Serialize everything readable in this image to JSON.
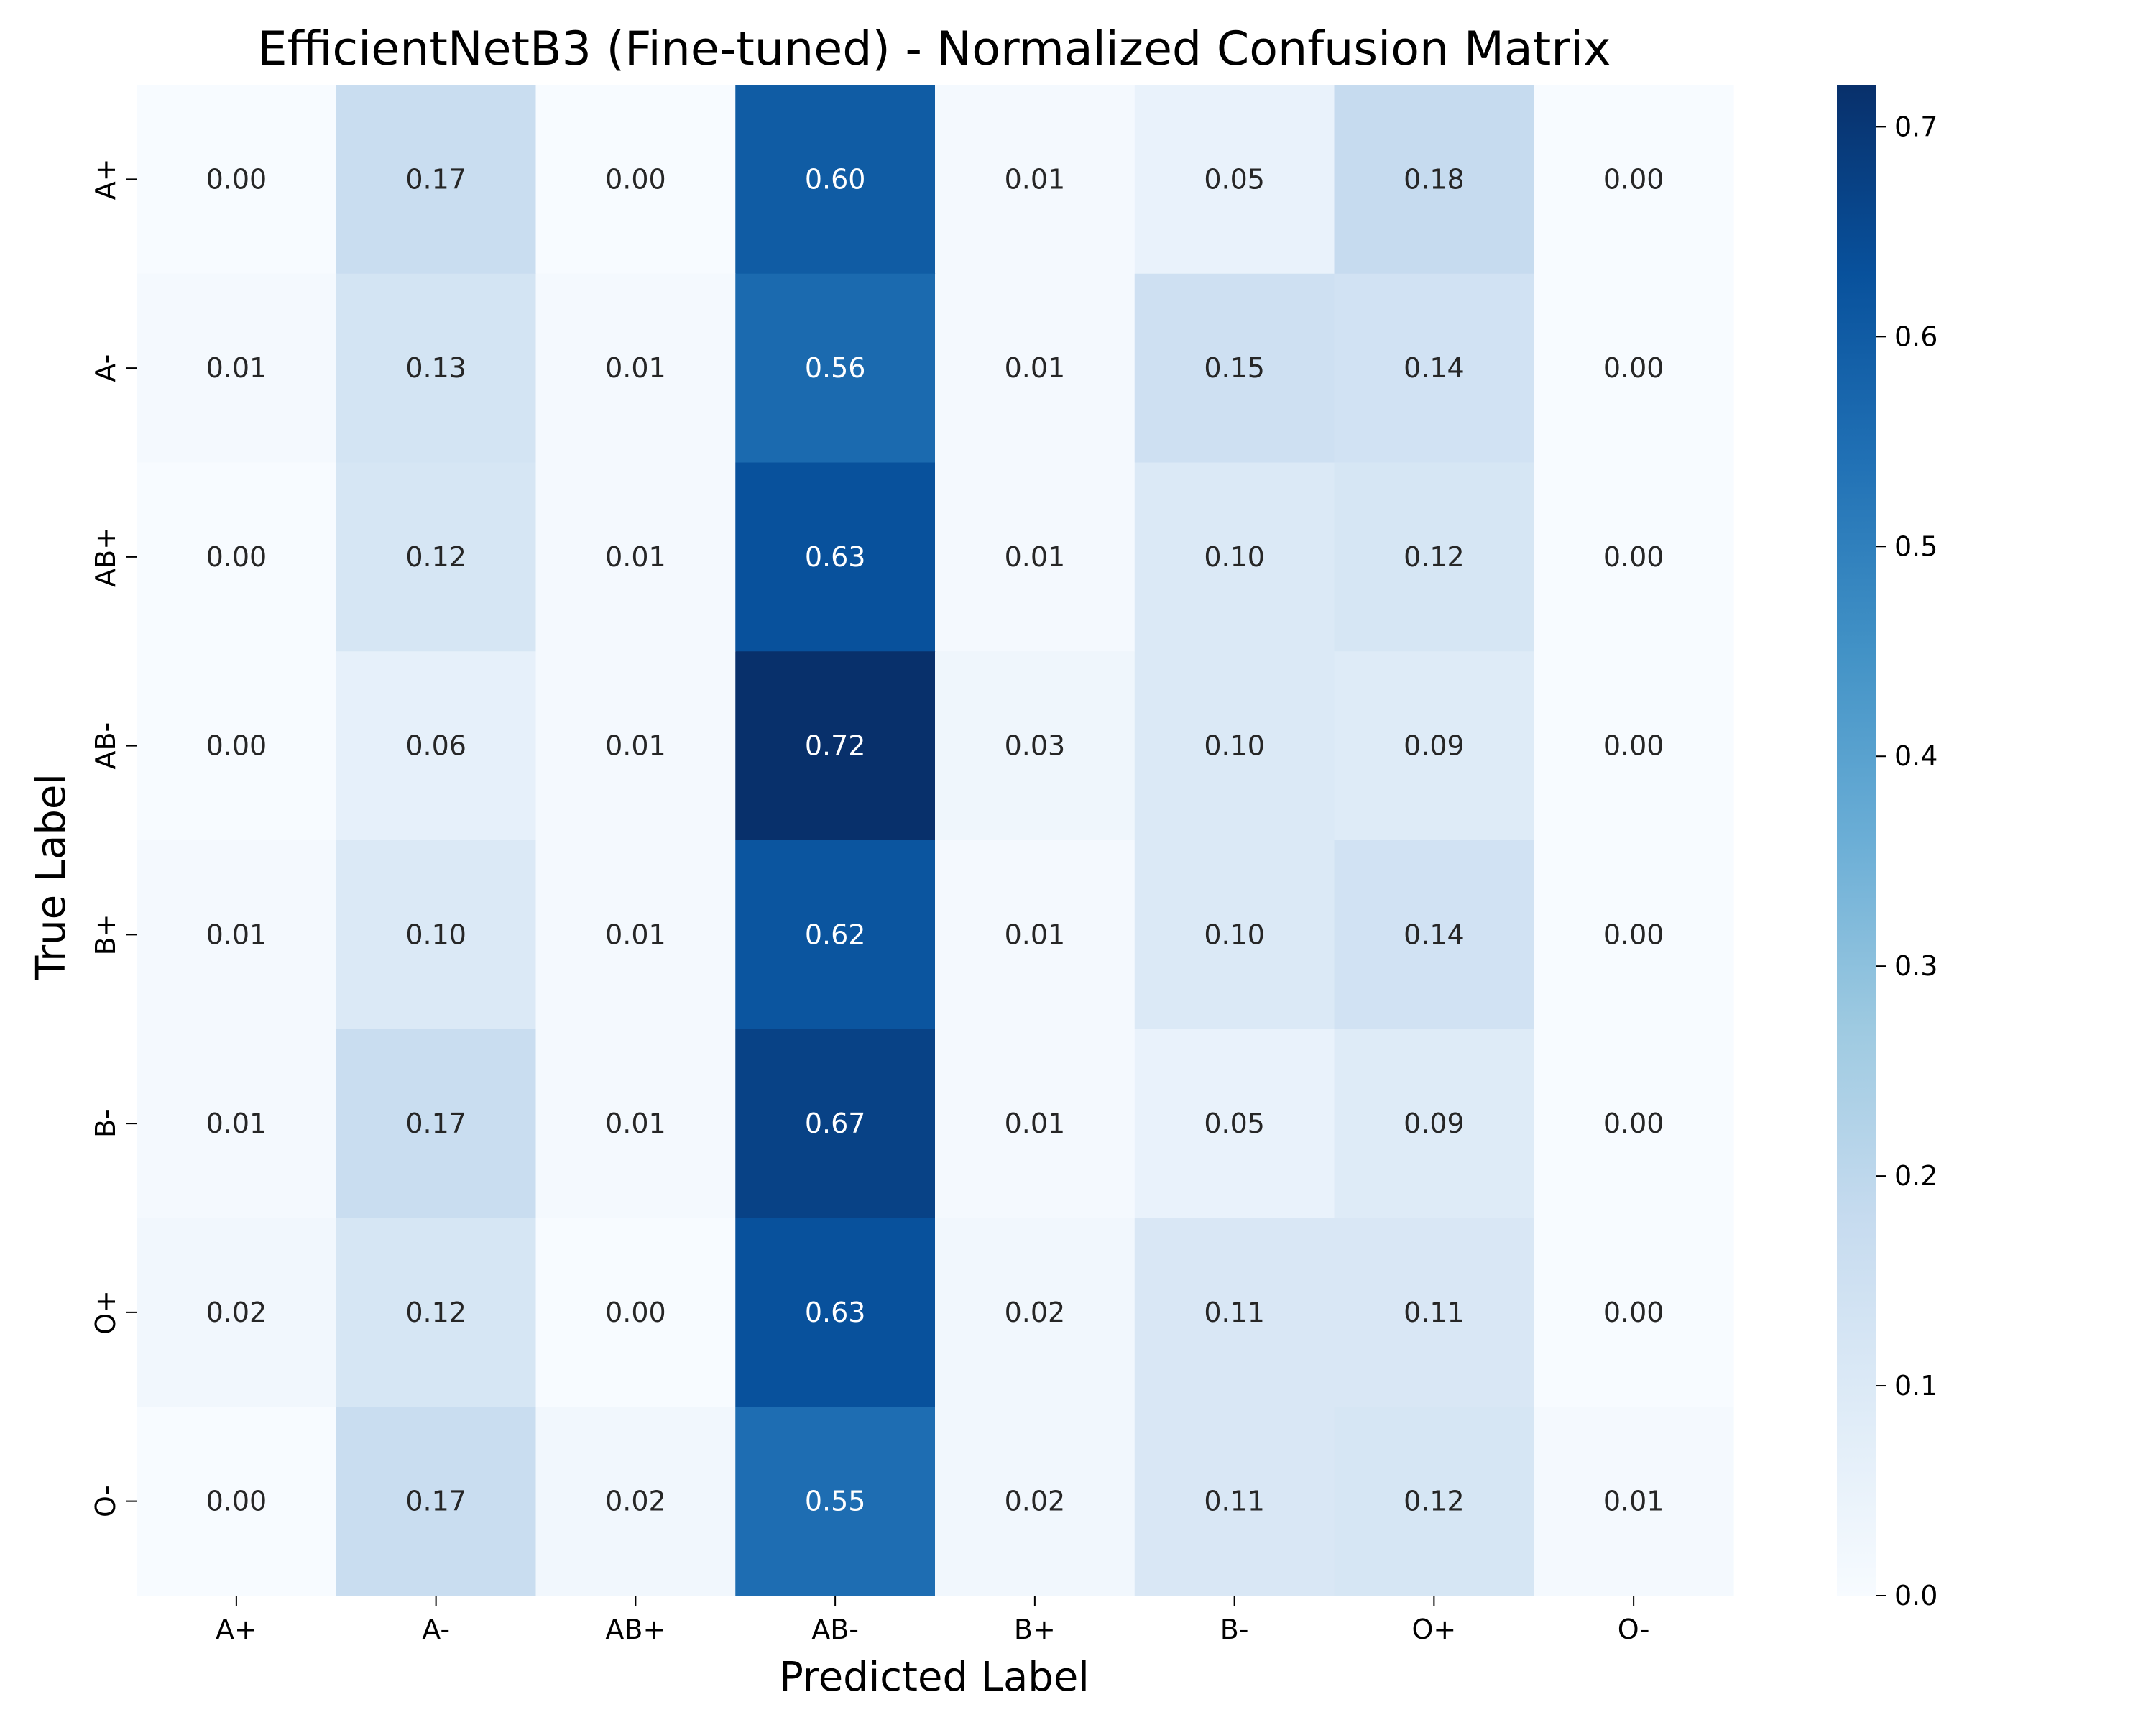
{
  "chart_data": {
    "type": "heatmap",
    "title": "EfficientNetB3 (Fine-tuned) - Normalized Confusion Matrix",
    "xlabel": "Predicted Label",
    "ylabel": "True Label",
    "x_categories": [
      "A+",
      "A-",
      "AB+",
      "AB-",
      "B+",
      "B-",
      "O+",
      "O-"
    ],
    "y_categories": [
      "A+",
      "A-",
      "AB+",
      "AB-",
      "B+",
      "B-",
      "O+",
      "O-"
    ],
    "values": [
      [
        0.0,
        0.17,
        0.0,
        0.6,
        0.01,
        0.05,
        0.18,
        0.0
      ],
      [
        0.01,
        0.13,
        0.01,
        0.56,
        0.01,
        0.15,
        0.14,
        0.0
      ],
      [
        0.0,
        0.12,
        0.01,
        0.63,
        0.01,
        0.1,
        0.12,
        0.0
      ],
      [
        0.0,
        0.06,
        0.01,
        0.72,
        0.03,
        0.1,
        0.09,
        0.0
      ],
      [
        0.01,
        0.1,
        0.01,
        0.62,
        0.01,
        0.1,
        0.14,
        0.0
      ],
      [
        0.01,
        0.17,
        0.01,
        0.67,
        0.01,
        0.05,
        0.09,
        0.0
      ],
      [
        0.02,
        0.12,
        0.0,
        0.63,
        0.02,
        0.11,
        0.11,
        0.0
      ],
      [
        0.0,
        0.17,
        0.02,
        0.55,
        0.02,
        0.11,
        0.12,
        0.01
      ]
    ],
    "value_format": "0.00",
    "colormap": "Blues",
    "color_range": [
      0.0,
      0.72
    ],
    "colorbar": {
      "ticks": [
        0.0,
        0.1,
        0.2,
        0.3,
        0.4,
        0.5,
        0.6,
        0.7
      ],
      "tick_labels": [
        "0.0",
        "0.1",
        "0.2",
        "0.3",
        "0.4",
        "0.5",
        "0.6",
        "0.7"
      ],
      "placement": "right"
    },
    "grid": false
  }
}
